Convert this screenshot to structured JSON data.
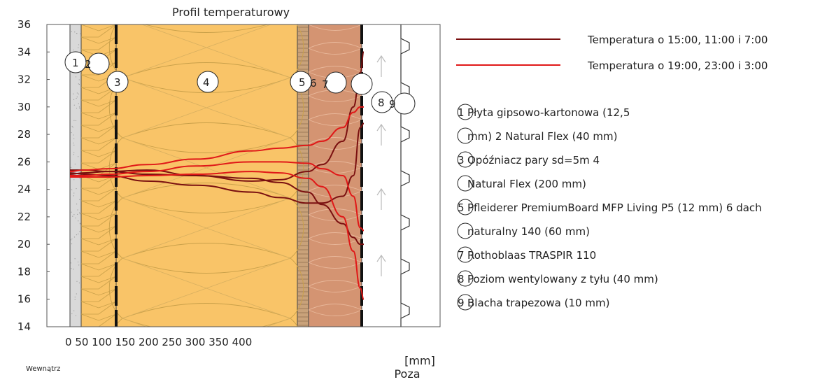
{
  "chart_data": {
    "type": "line",
    "title": "Profil temperaturowy",
    "x_unit": "[mm]",
    "x_ticks": [
      "0",
      "50",
      "100",
      "150",
      "200",
      "250",
      "300",
      "350",
      "400"
    ],
    "y_ticks": [
      14,
      16,
      18,
      20,
      22,
      24,
      26,
      28,
      30,
      32,
      34,
      36
    ],
    "ylim": [
      14,
      36
    ],
    "inside_label": "Wewnątrz",
    "outside_label": "Poza",
    "x": [
      0,
      20,
      55,
      110,
      180,
      260,
      300,
      340,
      360,
      390,
      405,
      415,
      420
    ],
    "series": [
      {
        "name": "Temperatura o 15:00, 11:00 i 7:00",
        "color": "#7a1010",
        "values": [
          25.2,
          25.1,
          25.0,
          24.6,
          24.3,
          23.8,
          23.4,
          23.0,
          23.0,
          23.5,
          25.0,
          28.5,
          28.8
        ]
      },
      {
        "name": "Temperatura o 15:00, 11:00 i 7:00",
        "color": "#7a1010",
        "values": [
          25.4,
          25.4,
          25.3,
          25.1,
          25.0,
          24.8,
          24.5,
          23.8,
          22.9,
          21.5,
          20.5,
          20.0,
          20.0
        ]
      },
      {
        "name": "Temperatura o 15:00, 11:00 i 7:00",
        "color": "#7a1010",
        "values": [
          25.1,
          25.2,
          25.3,
          25.4,
          25.0,
          24.6,
          24.7,
          25.3,
          25.8,
          27.5,
          30.0,
          32.5,
          34.0
        ]
      },
      {
        "name": "Temperatura o 19:00, 23:00 i 3:00",
        "color": "#e01818",
        "values": [
          25.3,
          25.4,
          25.5,
          25.8,
          26.2,
          26.8,
          27.0,
          27.2,
          27.5,
          28.5,
          29.6,
          30.0,
          30.0
        ]
      },
      {
        "name": "Temperatura o 19:00, 23:00 i 3:00",
        "color": "#e01818",
        "values": [
          25.0,
          25.0,
          25.1,
          25.3,
          25.7,
          26.0,
          26.0,
          25.9,
          25.5,
          25.0,
          23.5,
          21.2,
          21.0
        ]
      },
      {
        "name": "Temperatura o 19:00, 23:00 i 3:00",
        "color": "#e01818",
        "values": [
          24.9,
          24.9,
          24.9,
          25.0,
          25.1,
          25.3,
          25.2,
          24.8,
          24.2,
          22.0,
          19.5,
          16.8,
          16.0
        ]
      }
    ],
    "legend": [
      {
        "label": "Temperatura o 15:00, 11:00 i 7:00",
        "color": "#7a1010"
      },
      {
        "label": "Temperatura o 19:00, 23:00 i 3:00",
        "color": "#e01818"
      }
    ],
    "layer_markers": [
      {
        "label": "1"
      },
      {
        "label": "2"
      },
      {
        "label": "3"
      },
      {
        "label": "4"
      },
      {
        "label": "5"
      },
      {
        "label": "6"
      },
      {
        "label": "7"
      },
      {
        "label": "8"
      },
      {
        "label": "9"
      }
    ],
    "layer_key": [
      {
        "num": "1",
        "text": "Płyta gipsowo-kartonowa (12,5"
      },
      {
        "num": "",
        "text": "mm) 2 Natural Flex (40 mm)"
      },
      {
        "num": "3",
        "text": "Opóźniacz pary sd=5m 4"
      },
      {
        "num": "",
        "text": "Natural Flex (200 mm)"
      },
      {
        "num": "5",
        "text": "Pfleiderer PremiumBoard MFP Living P5 (12 mm) 6 dach"
      },
      {
        "num": "",
        "text": "naturalny 140 (60 mm)"
      },
      {
        "num": "7",
        "text": "Rothoblaas TRASPIR 110"
      },
      {
        "num": "8",
        "text": "Poziom wentylowany z tyłu (40 mm)"
      },
      {
        "num": "9",
        "text": "Blacha trapezowa (10 mm)"
      }
    ],
    "colors": {
      "gypsum": "#d9d9d9",
      "insulation": "#f9c468",
      "board": "#c9a27a",
      "wood_fibre": "#d49472",
      "air_gap": "#ffffff",
      "outline": "#333333"
    }
  }
}
